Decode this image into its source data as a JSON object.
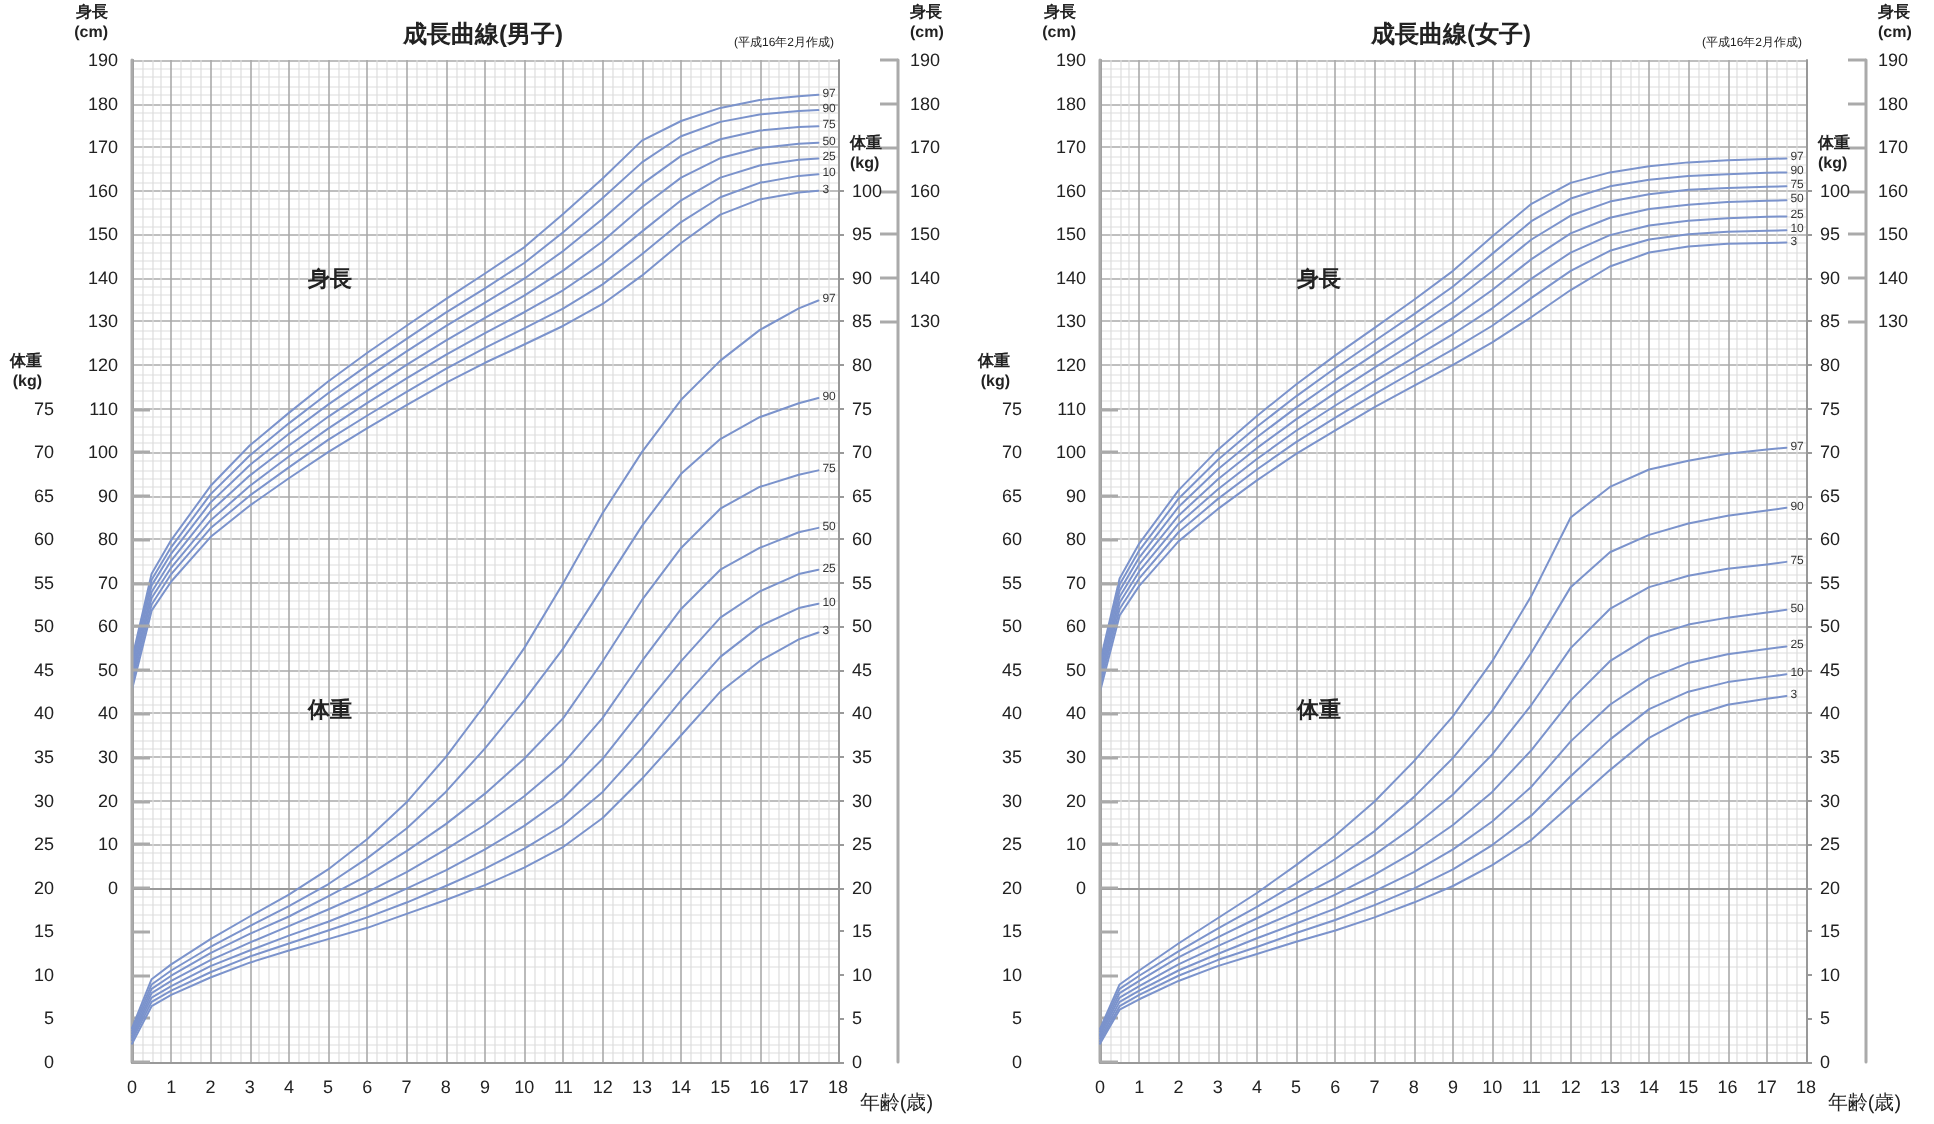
{
  "chart_data": [
    {
      "type": "line",
      "title": "成長曲線(男子)",
      "ylabel": "身長\n(cm)",
      "y2label": "身長\n(cm)",
      "annotations": [
        "(平成16年2月作成)",
        "身長"
      ],
      "x": [
        0,
        0.5,
        1,
        2,
        3,
        4,
        5,
        6,
        7,
        8,
        9,
        10,
        11,
        12,
        13,
        14,
        15,
        16,
        17,
        17.5
      ],
      "xlim": [
        0,
        18
      ],
      "xticks": [
        0,
        1,
        2,
        3,
        4,
        5,
        6,
        7,
        8,
        9,
        10,
        11,
        12,
        13,
        14,
        15,
        16,
        17,
        18
      ],
      "ylim": [
        -40,
        190
      ],
      "yticks": [
        0,
        10,
        20,
        30,
        40,
        50,
        60,
        70,
        80,
        90,
        100,
        110,
        120,
        130,
        140,
        150,
        160,
        170,
        180,
        190
      ],
      "y2lim": [
        -40,
        190
      ],
      "y2ticks": [
        130,
        140,
        150,
        160,
        170,
        180,
        190
      ],
      "tick_labels": "y",
      "grid": true,
      "legend": false,
      "marker": "none",
      "line_style": "solid",
      "series": [
        {
          "name": "97",
          "color": "#7b93cc",
          "values": [
            52.5,
            72.1,
            79.8,
            92.2,
            101.5,
            109.0,
            116.2,
            122.8,
            129.0,
            135.1,
            141.0,
            147.0,
            154.7,
            162.8,
            171.5,
            176.0,
            179.0,
            180.8,
            181.7,
            182.0
          ]
        },
        {
          "name": "90",
          "color": "#7b93cc",
          "values": [
            51.3,
            70.7,
            78.2,
            90.3,
            99.2,
            106.6,
            113.5,
            119.9,
            126.0,
            132.0,
            137.6,
            143.4,
            150.5,
            158.3,
            166.5,
            172.5,
            175.8,
            177.5,
            178.3,
            178.5
          ]
        },
        {
          "name": "75",
          "color": "#7b93cc",
          "values": [
            50.2,
            69.4,
            76.7,
            88.4,
            97.0,
            104.2,
            110.9,
            117.1,
            123.1,
            128.9,
            134.3,
            139.8,
            146.2,
            153.5,
            161.5,
            168.0,
            171.8,
            173.8,
            174.6,
            174.8
          ]
        },
        {
          "name": "50",
          "color": "#7b93cc",
          "values": [
            49.0,
            67.9,
            75.1,
            86.4,
            94.6,
            101.5,
            108.1,
            114.1,
            120.0,
            125.6,
            130.8,
            135.9,
            141.7,
            148.4,
            156.2,
            163.0,
            167.5,
            169.8,
            170.8,
            171.0
          ]
        },
        {
          "name": "25",
          "color": "#7b93cc",
          "values": [
            48.0,
            66.5,
            73.5,
            84.3,
            92.2,
            99.0,
            105.4,
            111.3,
            116.9,
            122.3,
            127.3,
            132.1,
            137.2,
            143.3,
            150.6,
            157.8,
            163.0,
            165.8,
            167.1,
            167.4
          ]
        },
        {
          "name": "10",
          "color": "#7b93cc",
          "values": [
            46.8,
            65.0,
            72.0,
            82.5,
            90.0,
            96.5,
            102.8,
            108.4,
            113.8,
            119.1,
            123.9,
            128.4,
            133.0,
            138.5,
            145.4,
            152.8,
            158.5,
            161.8,
            163.4,
            163.8
          ]
        },
        {
          "name": "3",
          "color": "#7b93cc",
          "values": [
            45.5,
            63.6,
            70.3,
            80.5,
            87.7,
            94.0,
            100.0,
            105.5,
            110.8,
            115.9,
            120.5,
            124.7,
            129.0,
            134.0,
            140.5,
            148.0,
            154.5,
            158.0,
            159.6,
            160.0
          ]
        }
      ]
    },
    {
      "type": "line",
      "xlabel": "年齢(歳)",
      "ylabel": "体重\n(kg)",
      "y2label": "体重\n(kg)",
      "annotations": [
        "体重"
      ],
      "x": [
        0,
        0.5,
        1,
        2,
        3,
        4,
        5,
        6,
        7,
        8,
        9,
        10,
        11,
        12,
        13,
        14,
        15,
        16,
        17,
        17.5
      ],
      "xlim": [
        0,
        18
      ],
      "xticks": [
        0,
        1,
        2,
        3,
        4,
        5,
        6,
        7,
        8,
        9,
        10,
        11,
        12,
        13,
        14,
        15,
        16,
        17,
        18
      ],
      "ylim": [
        0,
        115
      ],
      "yticks": [
        0,
        5,
        10,
        15,
        20,
        25,
        30,
        35,
        40,
        45,
        50,
        55,
        60,
        65,
        70,
        75
      ],
      "y2lim": [
        0,
        115
      ],
      "y2ticks": [
        0,
        5,
        10,
        15,
        20,
        25,
        30,
        35,
        40,
        45,
        50,
        55,
        60,
        65,
        70,
        75,
        80,
        85,
        90,
        95,
        100
      ],
      "legend": false,
      "marker": "none",
      "line_style": "solid",
      "series": [
        {
          "name": "97",
          "color": "#7b93cc",
          "values": [
            3.9,
            9.5,
            11.2,
            14.1,
            16.7,
            19.2,
            22.1,
            25.6,
            29.8,
            35.0,
            41.0,
            47.5,
            55.0,
            63.0,
            70.0,
            76.0,
            80.5,
            84.0,
            86.5,
            87.4
          ]
        },
        {
          "name": "90",
          "color": "#7b93cc",
          "values": [
            3.6,
            8.9,
            10.5,
            13.2,
            15.6,
            17.9,
            20.4,
            23.4,
            26.8,
            31.0,
            36.0,
            41.5,
            47.5,
            54.5,
            61.5,
            67.5,
            71.5,
            74.0,
            75.6,
            76.2
          ]
        },
        {
          "name": "75",
          "color": "#7b93cc",
          "values": [
            3.3,
            8.4,
            9.9,
            12.5,
            14.7,
            16.7,
            19.0,
            21.4,
            24.2,
            27.3,
            30.8,
            34.8,
            39.5,
            46.0,
            53.0,
            59.0,
            63.5,
            66.0,
            67.4,
            67.9
          ]
        },
        {
          "name": "50",
          "color": "#7b93cc",
          "values": [
            3.0,
            7.9,
            9.3,
            11.7,
            13.7,
            15.6,
            17.5,
            19.5,
            21.8,
            24.4,
            27.2,
            30.5,
            34.3,
            39.5,
            46.0,
            52.0,
            56.5,
            59.0,
            60.8,
            61.3
          ]
        },
        {
          "name": "25",
          "color": "#7b93cc",
          "values": [
            2.8,
            7.4,
            8.7,
            11.0,
            12.8,
            14.5,
            16.1,
            17.9,
            19.9,
            22.0,
            24.4,
            27.1,
            30.3,
            34.8,
            40.5,
            46.0,
            51.0,
            54.0,
            56.0,
            56.5
          ]
        },
        {
          "name": "10",
          "color": "#7b93cc",
          "values": [
            2.5,
            6.9,
            8.2,
            10.3,
            12.1,
            13.6,
            15.1,
            16.6,
            18.3,
            20.2,
            22.2,
            24.5,
            27.2,
            31.0,
            36.0,
            41.5,
            46.5,
            50.0,
            52.1,
            52.6
          ]
        },
        {
          "name": "3",
          "color": "#7b93cc",
          "values": [
            2.1,
            6.4,
            7.7,
            9.7,
            11.4,
            12.8,
            14.1,
            15.4,
            17.0,
            18.6,
            20.3,
            22.3,
            24.7,
            28.0,
            32.5,
            37.5,
            42.5,
            46.0,
            48.5,
            49.3
          ]
        }
      ]
    },
    {
      "type": "line",
      "title": "成長曲線(女子)",
      "ylabel": "身長\n(cm)",
      "y2label": "身長\n(cm)",
      "annotations": [
        "(平成16年2月作成)",
        "身長"
      ],
      "x": [
        0,
        0.5,
        1,
        2,
        3,
        4,
        5,
        6,
        7,
        8,
        9,
        10,
        11,
        12,
        13,
        14,
        15,
        16,
        17,
        17.5
      ],
      "xlim": [
        0,
        18
      ],
      "xticks": [
        0,
        1,
        2,
        3,
        4,
        5,
        6,
        7,
        8,
        9,
        10,
        11,
        12,
        13,
        14,
        15,
        16,
        17,
        18
      ],
      "ylim": [
        -40,
        190
      ],
      "yticks": [
        0,
        10,
        20,
        30,
        40,
        50,
        60,
        70,
        80,
        90,
        100,
        110,
        120,
        130,
        140,
        150,
        160,
        170,
        180,
        190
      ],
      "y2lim": [
        -40,
        190
      ],
      "y2ticks": [
        130,
        140,
        150,
        160,
        170,
        180,
        190
      ],
      "tick_labels": "y",
      "grid": true,
      "legend": false,
      "marker": "none",
      "line_style": "solid",
      "series": [
        {
          "name": "97",
          "color": "#7b93cc",
          "values": [
            51.8,
            71.0,
            79.0,
            91.2,
            100.5,
            108.3,
            115.5,
            122.2,
            128.5,
            134.9,
            141.6,
            149.5,
            157.0,
            161.8,
            164.2,
            165.6,
            166.5,
            167.0,
            167.3,
            167.4
          ]
        },
        {
          "name": "90",
          "color": "#7b93cc",
          "values": [
            50.7,
            69.6,
            77.4,
            89.3,
            98.2,
            105.8,
            112.8,
            119.3,
            125.5,
            131.6,
            138.0,
            145.5,
            153.0,
            158.2,
            161.0,
            162.5,
            163.4,
            163.8,
            164.1,
            164.2
          ]
        },
        {
          "name": "75",
          "color": "#7b93cc",
          "values": [
            49.6,
            68.2,
            75.8,
            87.4,
            96.0,
            103.4,
            110.2,
            116.5,
            122.5,
            128.4,
            134.5,
            141.5,
            148.8,
            154.3,
            157.5,
            159.2,
            160.2,
            160.6,
            160.9,
            161.0
          ]
        },
        {
          "name": "50",
          "color": "#7b93cc",
          "values": [
            48.5,
            66.8,
            74.2,
            85.4,
            93.7,
            100.9,
            107.5,
            113.6,
            119.4,
            125.1,
            130.8,
            137.2,
            144.3,
            150.2,
            153.8,
            155.8,
            156.8,
            157.4,
            157.7,
            157.8
          ]
        },
        {
          "name": "25",
          "color": "#7b93cc",
          "values": [
            47.5,
            65.4,
            72.6,
            83.5,
            91.4,
            98.4,
            104.9,
            110.7,
            116.3,
            121.7,
            127.1,
            133.0,
            139.8,
            145.8,
            149.8,
            152.0,
            153.1,
            153.7,
            154.0,
            154.1
          ]
        },
        {
          "name": "10",
          "color": "#7b93cc",
          "values": [
            46.3,
            64.0,
            71.0,
            81.6,
            89.2,
            96.0,
            102.3,
            107.9,
            113.3,
            118.5,
            123.6,
            129.0,
            135.4,
            141.6,
            146.2,
            148.8,
            150.0,
            150.6,
            150.8,
            150.9
          ]
        },
        {
          "name": "3",
          "color": "#7b93cc",
          "values": [
            45.0,
            62.5,
            69.3,
            79.5,
            86.9,
            93.5,
            99.6,
            105.0,
            110.3,
            115.2,
            120.0,
            125.2,
            131.0,
            137.2,
            142.6,
            145.8,
            147.2,
            147.8,
            148.0,
            148.1
          ]
        }
      ]
    },
    {
      "type": "line",
      "xlabel": "年齢(歳)",
      "ylabel": "体重\n(kg)",
      "y2label": "体重\n(kg)",
      "annotations": [
        "体重"
      ],
      "x": [
        0,
        0.5,
        1,
        2,
        3,
        4,
        5,
        6,
        7,
        8,
        9,
        10,
        11,
        12,
        13,
        14,
        15,
        16,
        17,
        17.5
      ],
      "xlim": [
        0,
        18
      ],
      "xticks": [
        0,
        1,
        2,
        3,
        4,
        5,
        6,
        7,
        8,
        9,
        10,
        11,
        12,
        13,
        14,
        15,
        16,
        17,
        18
      ],
      "ylim": [
        0,
        115
      ],
      "yticks": [
        0,
        5,
        10,
        15,
        20,
        25,
        30,
        35,
        40,
        45,
        50,
        55,
        60,
        65,
        70,
        75
      ],
      "y2lim": [
        0,
        115
      ],
      "y2ticks": [
        0,
        5,
        10,
        15,
        20,
        25,
        30,
        35,
        40,
        45,
        50,
        55,
        60,
        65,
        70,
        75,
        80,
        85,
        90,
        95,
        100
      ],
      "legend": false,
      "marker": "none",
      "line_style": "solid",
      "series": [
        {
          "name": "97",
          "color": "#7b93cc",
          "values": [
            3.8,
            8.9,
            10.5,
            13.6,
            16.5,
            19.4,
            22.6,
            26.0,
            29.9,
            34.5,
            39.7,
            46.0,
            53.5,
            62.5,
            66.0,
            68.0,
            69.0,
            69.8,
            70.3,
            70.5
          ]
        },
        {
          "name": "90",
          "color": "#7b93cc",
          "values": [
            3.5,
            8.4,
            9.9,
            12.7,
            15.3,
            17.8,
            20.5,
            23.3,
            26.5,
            30.4,
            34.9,
            40.3,
            47.0,
            54.5,
            58.5,
            60.5,
            61.8,
            62.7,
            63.3,
            63.6
          ]
        },
        {
          "name": "75",
          "color": "#7b93cc",
          "values": [
            3.2,
            7.9,
            9.3,
            12.0,
            14.3,
            16.5,
            18.8,
            21.1,
            23.8,
            27.0,
            30.7,
            35.3,
            41.0,
            47.5,
            52.0,
            54.5,
            55.8,
            56.6,
            57.1,
            57.4
          ]
        },
        {
          "name": "50",
          "color": "#7b93cc",
          "values": [
            3.0,
            7.4,
            8.7,
            11.2,
            13.3,
            15.3,
            17.2,
            19.2,
            21.5,
            24.1,
            27.2,
            31.0,
            35.8,
            41.5,
            46.0,
            48.8,
            50.2,
            51.0,
            51.6,
            51.9
          ]
        },
        {
          "name": "25",
          "color": "#7b93cc",
          "values": [
            2.7,
            6.9,
            8.2,
            10.5,
            12.4,
            14.2,
            15.9,
            17.6,
            19.6,
            21.8,
            24.4,
            27.6,
            31.6,
            36.8,
            41.0,
            44.0,
            45.8,
            46.8,
            47.4,
            47.7
          ]
        },
        {
          "name": "10",
          "color": "#7b93cc",
          "values": [
            2.4,
            6.4,
            7.7,
            9.9,
            11.7,
            13.2,
            14.8,
            16.3,
            18.0,
            19.9,
            22.1,
            24.9,
            28.3,
            32.8,
            37.0,
            40.5,
            42.5,
            43.6,
            44.2,
            44.5
          ]
        },
        {
          "name": "3",
          "color": "#7b93cc",
          "values": [
            2.1,
            6.0,
            7.2,
            9.3,
            11.0,
            12.4,
            13.8,
            15.1,
            16.6,
            18.3,
            20.2,
            22.6,
            25.5,
            29.5,
            33.5,
            37.2,
            39.6,
            41.0,
            41.7,
            42.0
          ]
        }
      ]
    }
  ]
}
